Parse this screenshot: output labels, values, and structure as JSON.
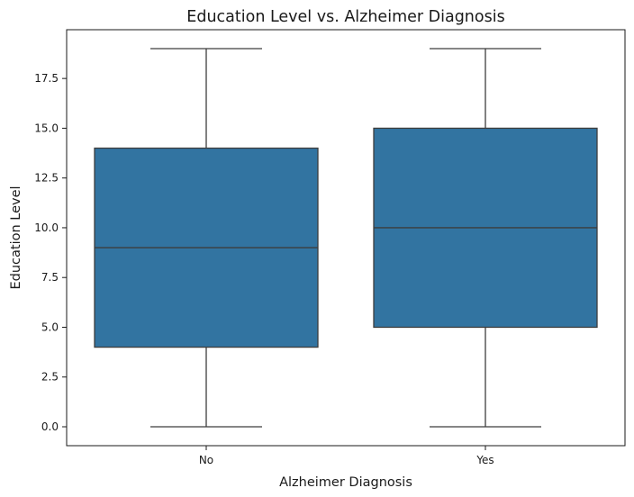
{
  "chart_data": {
    "type": "box",
    "title": "Education Level vs. Alzheimer Diagnosis",
    "xlabel": "Alzheimer Diagnosis",
    "ylabel": "Education Level",
    "categories": [
      "No",
      "Yes"
    ],
    "boxes": [
      {
        "category": "No",
        "whisker_low": 0,
        "q1": 4,
        "median": 9,
        "q3": 14,
        "whisker_high": 19
      },
      {
        "category": "Yes",
        "whisker_low": 0,
        "q1": 5,
        "median": 10,
        "q3": 15,
        "whisker_high": 19
      }
    ],
    "ylim": [
      -0.95,
      19.95
    ],
    "yticks": [
      0.0,
      2.5,
      5.0,
      7.5,
      10.0,
      12.5,
      15.0,
      17.5
    ],
    "ytick_labels": [
      "0.0",
      "2.5",
      "5.0",
      "7.5",
      "10.0",
      "12.5",
      "15.0",
      "17.5"
    ],
    "box_color": "#3274a1",
    "line_color": "#3d3d3d",
    "grid": false
  }
}
